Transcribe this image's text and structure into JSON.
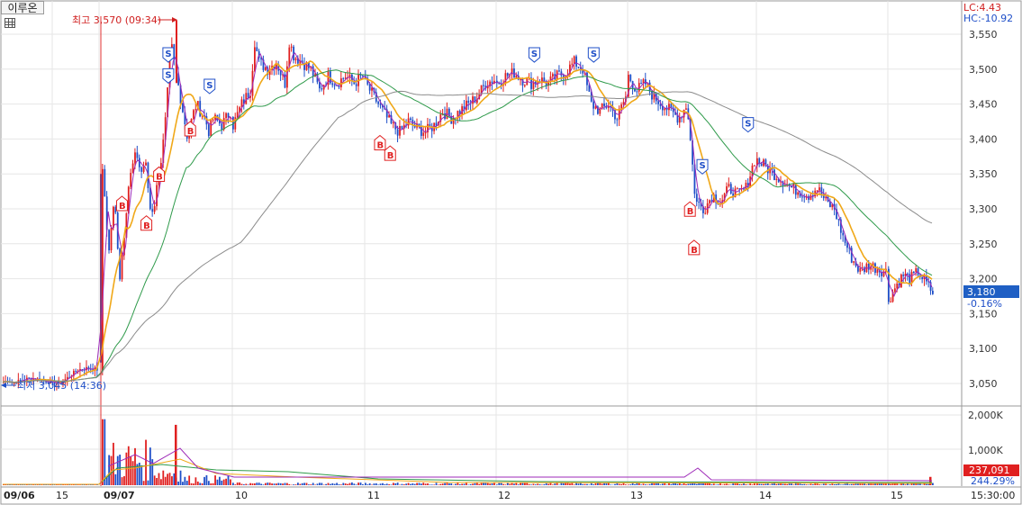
{
  "header": {
    "stock_name": "이루온",
    "lc_label": "LC:4.43",
    "hc_label": "HC:-10.92"
  },
  "annotations": {
    "high_label": "최고 3,570 (09:34)",
    "low_label": "최저 3,045 (14:36)"
  },
  "price_panel": {
    "current_price_label": "3,180",
    "change_label": "-0.16%",
    "y_ticks": [
      "3,550",
      "3,500",
      "3,450",
      "3,400",
      "3,350",
      "3,300",
      "3,250",
      "3,200",
      "3,150",
      "3,100",
      "3,050"
    ]
  },
  "volume_panel": {
    "y_ticks": [
      "2,000K",
      "1,000K"
    ],
    "current_volume_label": "237,091",
    "volume_ratio_label": "244.29%"
  },
  "x_axis": {
    "labels": [
      "09/06",
      "15",
      "09/07",
      "10",
      "11",
      "12",
      "13",
      "14",
      "15"
    ],
    "time_label": "15:30:00"
  },
  "colors": {
    "up": "#e02020",
    "down": "#1f4fc8",
    "ma_short": "#9e2ab8",
    "ma_mid": "#f0a818",
    "ma_long": "#2e9a4a",
    "ma_longest": "#8c8c8c",
    "current_price_bg": "#1f5fc4"
  },
  "chart_data": {
    "type": "candlestick",
    "price_axis": {
      "ylim": [
        3010,
        3570
      ],
      "ticks": [
        3550,
        3500,
        3450,
        3400,
        3350,
        3300,
        3250,
        3200,
        3150,
        3100,
        3050
      ]
    },
    "volume_axis": {
      "ylim": [
        0,
        2300
      ],
      "unit": "K",
      "ticks": [
        2000,
        1000
      ]
    },
    "high": {
      "value": 3570,
      "time": "09:34"
    },
    "low": {
      "value": 3045,
      "time": "14:36"
    },
    "last_price": 3180,
    "change_pct": -0.16,
    "last_volume": 237091,
    "volume_ratio_pct": 244.29,
    "sessions": [
      {
        "label": "09/06",
        "points": [
          [
            0,
            3052
          ],
          [
            0.5,
            3055
          ],
          [
            1,
            3050
          ],
          [
            2,
            3055
          ],
          [
            3,
            3058
          ],
          [
            4,
            3055
          ],
          [
            5,
            3052
          ],
          [
            6,
            3050
          ],
          [
            7,
            3060
          ],
          [
            8,
            3070
          ],
          [
            9,
            3072
          ],
          [
            10,
            3070
          ]
        ]
      },
      {
        "label": "09/07",
        "points": [
          [
            0,
            3350
          ],
          [
            0.4,
            3300
          ],
          [
            0.7,
            3230
          ],
          [
            1.2,
            3300
          ],
          [
            1.6,
            3290
          ],
          [
            2,
            3200
          ],
          [
            2.5,
            3260
          ],
          [
            3,
            3330
          ],
          [
            3.5,
            3360
          ],
          [
            4,
            3380
          ],
          [
            4.5,
            3350
          ],
          [
            5,
            3370
          ],
          [
            5.6,
            3300
          ],
          [
            6,
            3300
          ],
          [
            6.6,
            3350
          ],
          [
            7,
            3380
          ],
          [
            7.5,
            3440
          ],
          [
            8,
            3540
          ],
          [
            8.5,
            3500
          ],
          [
            9,
            3470
          ],
          [
            10,
            3400
          ],
          [
            10.5,
            3430
          ],
          [
            11,
            3450
          ],
          [
            12,
            3430
          ],
          [
            12.5,
            3410
          ],
          [
            13,
            3430
          ],
          [
            14,
            3420
          ],
          [
            15,
            3440
          ]
        ]
      },
      {
        "label": "10",
        "points": [
          [
            0,
            3420
          ],
          [
            1,
            3450
          ],
          [
            2,
            3470
          ],
          [
            2.5,
            3540
          ],
          [
            3,
            3510
          ],
          [
            4,
            3500
          ],
          [
            5,
            3510
          ],
          [
            6,
            3480
          ],
          [
            6.5,
            3540
          ],
          [
            7,
            3520
          ],
          [
            8,
            3510
          ],
          [
            9,
            3500
          ],
          [
            10,
            3470
          ],
          [
            11,
            3490
          ],
          [
            12,
            3480
          ],
          [
            13,
            3490
          ],
          [
            14,
            3480
          ],
          [
            15,
            3490
          ]
        ]
      },
      {
        "label": "11",
        "points": [
          [
            0,
            3480
          ],
          [
            1,
            3460
          ],
          [
            2,
            3440
          ],
          [
            3,
            3420
          ],
          [
            4,
            3410
          ],
          [
            5,
            3425
          ],
          [
            6,
            3415
          ],
          [
            7,
            3410
          ],
          [
            8,
            3420
          ],
          [
            9,
            3440
          ],
          [
            10,
            3430
          ],
          [
            11,
            3440
          ],
          [
            12,
            3450
          ],
          [
            13,
            3460
          ],
          [
            14,
            3480
          ],
          [
            15,
            3485
          ]
        ]
      },
      {
        "label": "12",
        "points": [
          [
            0,
            3480
          ],
          [
            1,
            3490
          ],
          [
            2,
            3495
          ],
          [
            3,
            3485
          ],
          [
            4,
            3480
          ],
          [
            5,
            3485
          ],
          [
            6,
            3480
          ],
          [
            7,
            3490
          ],
          [
            8,
            3495
          ],
          [
            9,
            3510
          ],
          [
            10,
            3500
          ],
          [
            11,
            3450
          ],
          [
            12,
            3440
          ],
          [
            13,
            3450
          ],
          [
            14,
            3430
          ],
          [
            15,
            3460
          ]
        ]
      },
      {
        "label": "13",
        "points": [
          [
            0,
            3490
          ],
          [
            1,
            3470
          ],
          [
            2,
            3480
          ],
          [
            3,
            3460
          ],
          [
            4,
            3450
          ],
          [
            5,
            3440
          ],
          [
            6,
            3430
          ],
          [
            7,
            3450
          ],
          [
            8,
            3310
          ],
          [
            9,
            3300
          ],
          [
            10,
            3320
          ],
          [
            11,
            3310
          ],
          [
            12,
            3330
          ],
          [
            13,
            3320
          ],
          [
            14,
            3330
          ],
          [
            15,
            3370
          ]
        ]
      },
      {
        "label": "14",
        "points": [
          [
            0,
            3370
          ],
          [
            1,
            3360
          ],
          [
            2,
            3350
          ],
          [
            3,
            3340
          ],
          [
            4,
            3330
          ],
          [
            5,
            3325
          ],
          [
            6,
            3320
          ],
          [
            7,
            3330
          ],
          [
            8,
            3310
          ],
          [
            9,
            3300
          ],
          [
            10,
            3260
          ],
          [
            11,
            3230
          ],
          [
            12,
            3210
          ],
          [
            13,
            3220
          ],
          [
            14,
            3215
          ],
          [
            15,
            3210
          ]
        ]
      },
      {
        "label": "15",
        "points": [
          [
            0,
            3170
          ],
          [
            1,
            3190
          ],
          [
            2,
            3205
          ],
          [
            3,
            3200
          ],
          [
            4,
            3210
          ],
          [
            5,
            3195
          ],
          [
            6,
            3180
          ]
        ]
      }
    ],
    "buy_signals": [
      {
        "session": 1,
        "t": 2.4,
        "price": 3318
      },
      {
        "session": 1,
        "t": 5.3,
        "price": 3290
      },
      {
        "session": 1,
        "t": 6.8,
        "price": 3360
      },
      {
        "session": 1,
        "t": 10.5,
        "price": 3425
      },
      {
        "session": 3,
        "t": 1.8,
        "price": 3405
      },
      {
        "session": 3,
        "t": 3.0,
        "price": 3390
      },
      {
        "session": 5,
        "t": 7.5,
        "price": 3310
      },
      {
        "session": 5,
        "t": 8.0,
        "price": 3255
      }
    ],
    "sell_signals": [
      {
        "session": 1,
        "t": 7.9,
        "price": 3510
      },
      {
        "session": 1,
        "t": 7.9,
        "price": 3480
      },
      {
        "session": 1,
        "t": 12.8,
        "price": 3465
      },
      {
        "session": 4,
        "t": 4.5,
        "price": 3510
      },
      {
        "session": 4,
        "t": 11.5,
        "price": 3510
      },
      {
        "session": 5,
        "t": 9.0,
        "price": 3350
      },
      {
        "session": 5,
        "t": 14.5,
        "price": 3410
      }
    ]
  }
}
